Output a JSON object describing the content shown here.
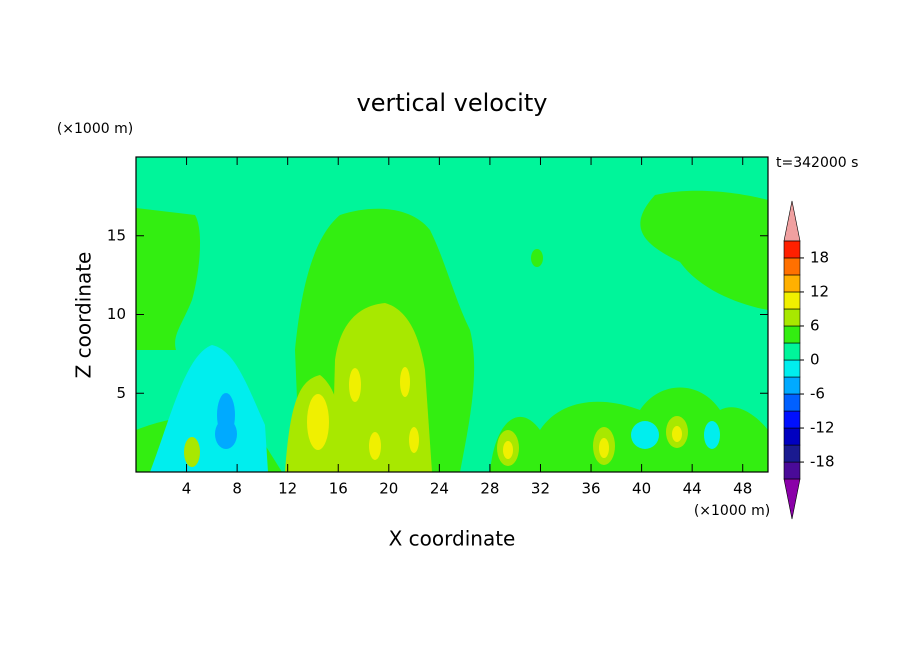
{
  "chart_data": {
    "type": "contour",
    "title": "vertical velocity",
    "x_label": "X coordinate",
    "y_label": "Z coordinate",
    "x_unit_label": "(×1000 m)",
    "y_unit_label": "(×1000 m)",
    "annotation": "t=342000 s",
    "xlim": [
      0,
      50
    ],
    "xticks": [
      4,
      8,
      12,
      16,
      20,
      24,
      28,
      32,
      36,
      40,
      44,
      48
    ],
    "ylim": [
      0,
      20
    ],
    "yticks": [
      5,
      10,
      15
    ],
    "colorbar": {
      "lim": [
        -21,
        21
      ],
      "ticks": [
        -18,
        -12,
        -6,
        0,
        6,
        12,
        18
      ],
      "colors": [
        "#4a0a98",
        "#1a1a90",
        "#0000c0",
        "#0010ff",
        "#0060ff",
        "#00aaff",
        "#00eeee",
        "#00f59a",
        "#33ee11",
        "#a8e800",
        "#f0f000",
        "#ffb000",
        "#ff7000",
        "#ff2000"
      ],
      "extend_colors": [
        "#8a00a8",
        "#f0a0a0"
      ]
    }
  }
}
